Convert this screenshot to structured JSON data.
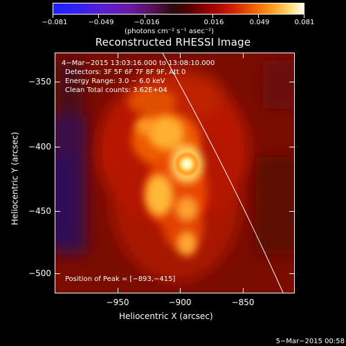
{
  "colorbar": {
    "tick_labels": [
      "−0.081",
      "−0.049",
      "−0.016",
      "0.016",
      "0.049",
      "0.081"
    ],
    "unit": "(photons cm⁻² s⁻¹ asec⁻²)"
  },
  "title": "Reconstructed RHESSI Image",
  "annotations": {
    "time": "4−Mar−2015 13:03:16.000  to 13:08:10.000",
    "detectors": "Detectors: 3F 5F 6F 7F 8F 9F, Att 0",
    "energy": "Energy Range: 3.0 − 6.0 keV",
    "clean": "Clean     Total counts: 3.62E+04",
    "peak": "Position of Peak = [−893,−415]"
  },
  "axes": {
    "xlabel": "Heliocentric X (arcsec)",
    "ylabel": "Heliocentric Y (arcsec)",
    "x_ticks": [
      "−950",
      "−900",
      "−850"
    ],
    "y_ticks": [
      "−350",
      "−400",
      "−450",
      "−500"
    ]
  },
  "footer": "5−Mar−2015 00:58",
  "colors": {
    "background": "#000000",
    "frame": "#ffffff",
    "limb_line": "#ffffff"
  }
}
